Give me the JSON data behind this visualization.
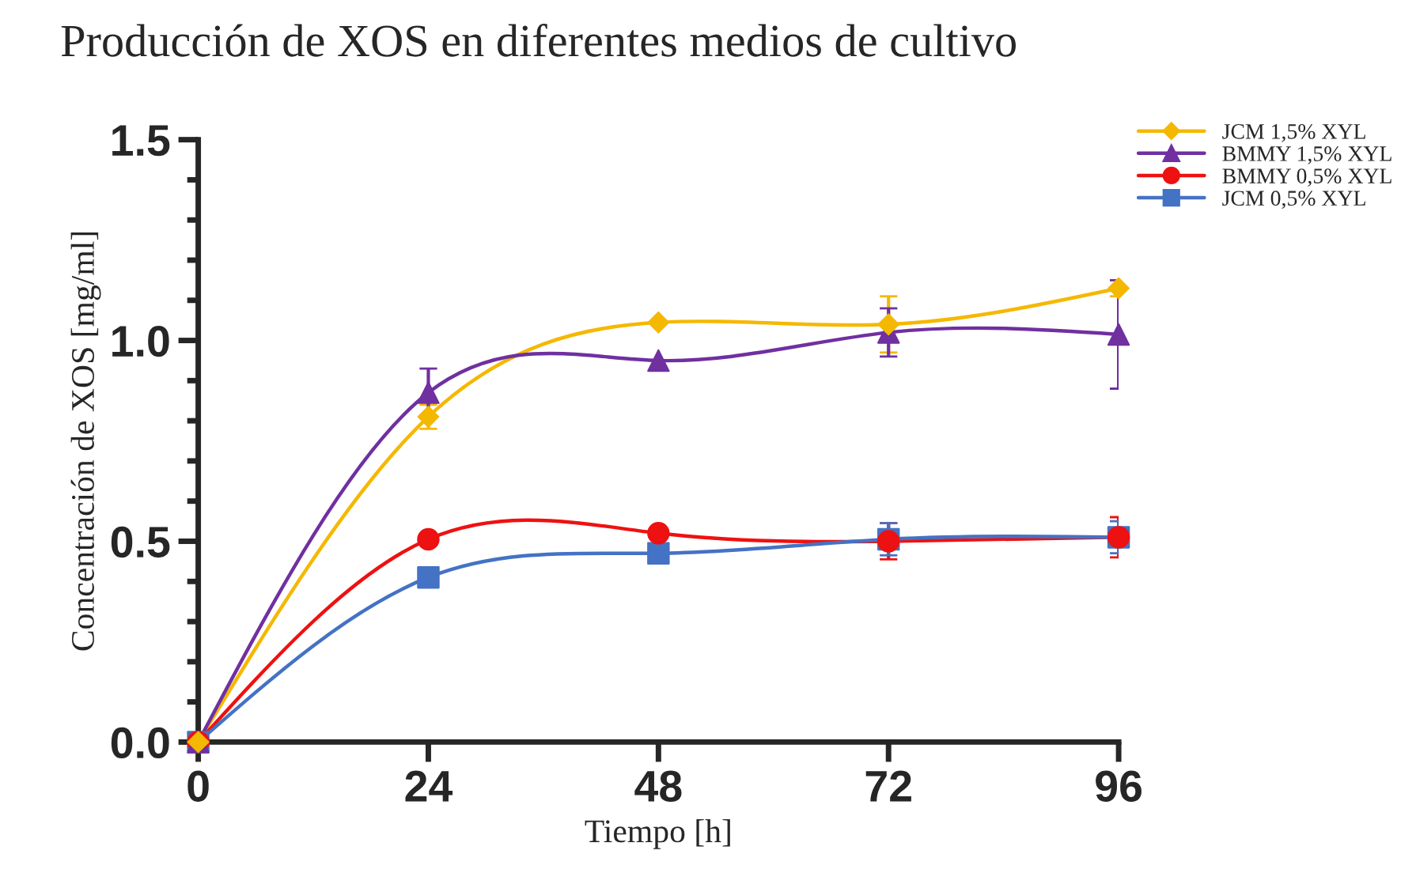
{
  "chart_data": {
    "type": "line",
    "title": "Producción de XOS en diferentes medios de cultivo",
    "xlabel": "Tiempo [h]",
    "ylabel": "Concentración de XOS [mg/ml]",
    "x": [
      0,
      24,
      48,
      72,
      96
    ],
    "series": [
      {
        "name": "JCM 1,5% XYL",
        "color": "#f5b800",
        "marker": "diamond",
        "values": [
          0,
          0.81,
          1.045,
          1.04,
          1.13
        ],
        "errors": [
          null,
          0.03,
          null,
          0.07,
          0.02
        ]
      },
      {
        "name": "BMMY 1,5% XYL",
        "color": "#7030a0",
        "marker": "triangle",
        "values": [
          0,
          0.87,
          0.95,
          1.02,
          1.015
        ],
        "errors": [
          null,
          0.06,
          null,
          0.06,
          0.135
        ]
      },
      {
        "name": "BMMY 0,5% XYL",
        "color": "#ee1111",
        "marker": "circle",
        "values": [
          0,
          0.505,
          0.52,
          0.5,
          0.51
        ],
        "errors": [
          null,
          null,
          null,
          0.045,
          0.05
        ]
      },
      {
        "name": "JCM 0,5% XYL",
        "color": "#4472c4",
        "marker": "square",
        "values": [
          0,
          0.41,
          0.47,
          0.505,
          0.51
        ],
        "errors": [
          null,
          null,
          null,
          0.04,
          0.04
        ]
      }
    ],
    "xlim": [
      0,
      96
    ],
    "xticks": [
      0,
      24,
      48,
      72,
      96
    ],
    "ylim": [
      0,
      1.5
    ],
    "yticks": [
      {
        "value": 0,
        "label": "0.0"
      },
      {
        "value": 0.5,
        "label": "0.5"
      },
      {
        "value": 1.0,
        "label": "1.0"
      },
      {
        "value": 1.5,
        "label": "1.5"
      }
    ],
    "grid": false,
    "legend": "top right"
  }
}
